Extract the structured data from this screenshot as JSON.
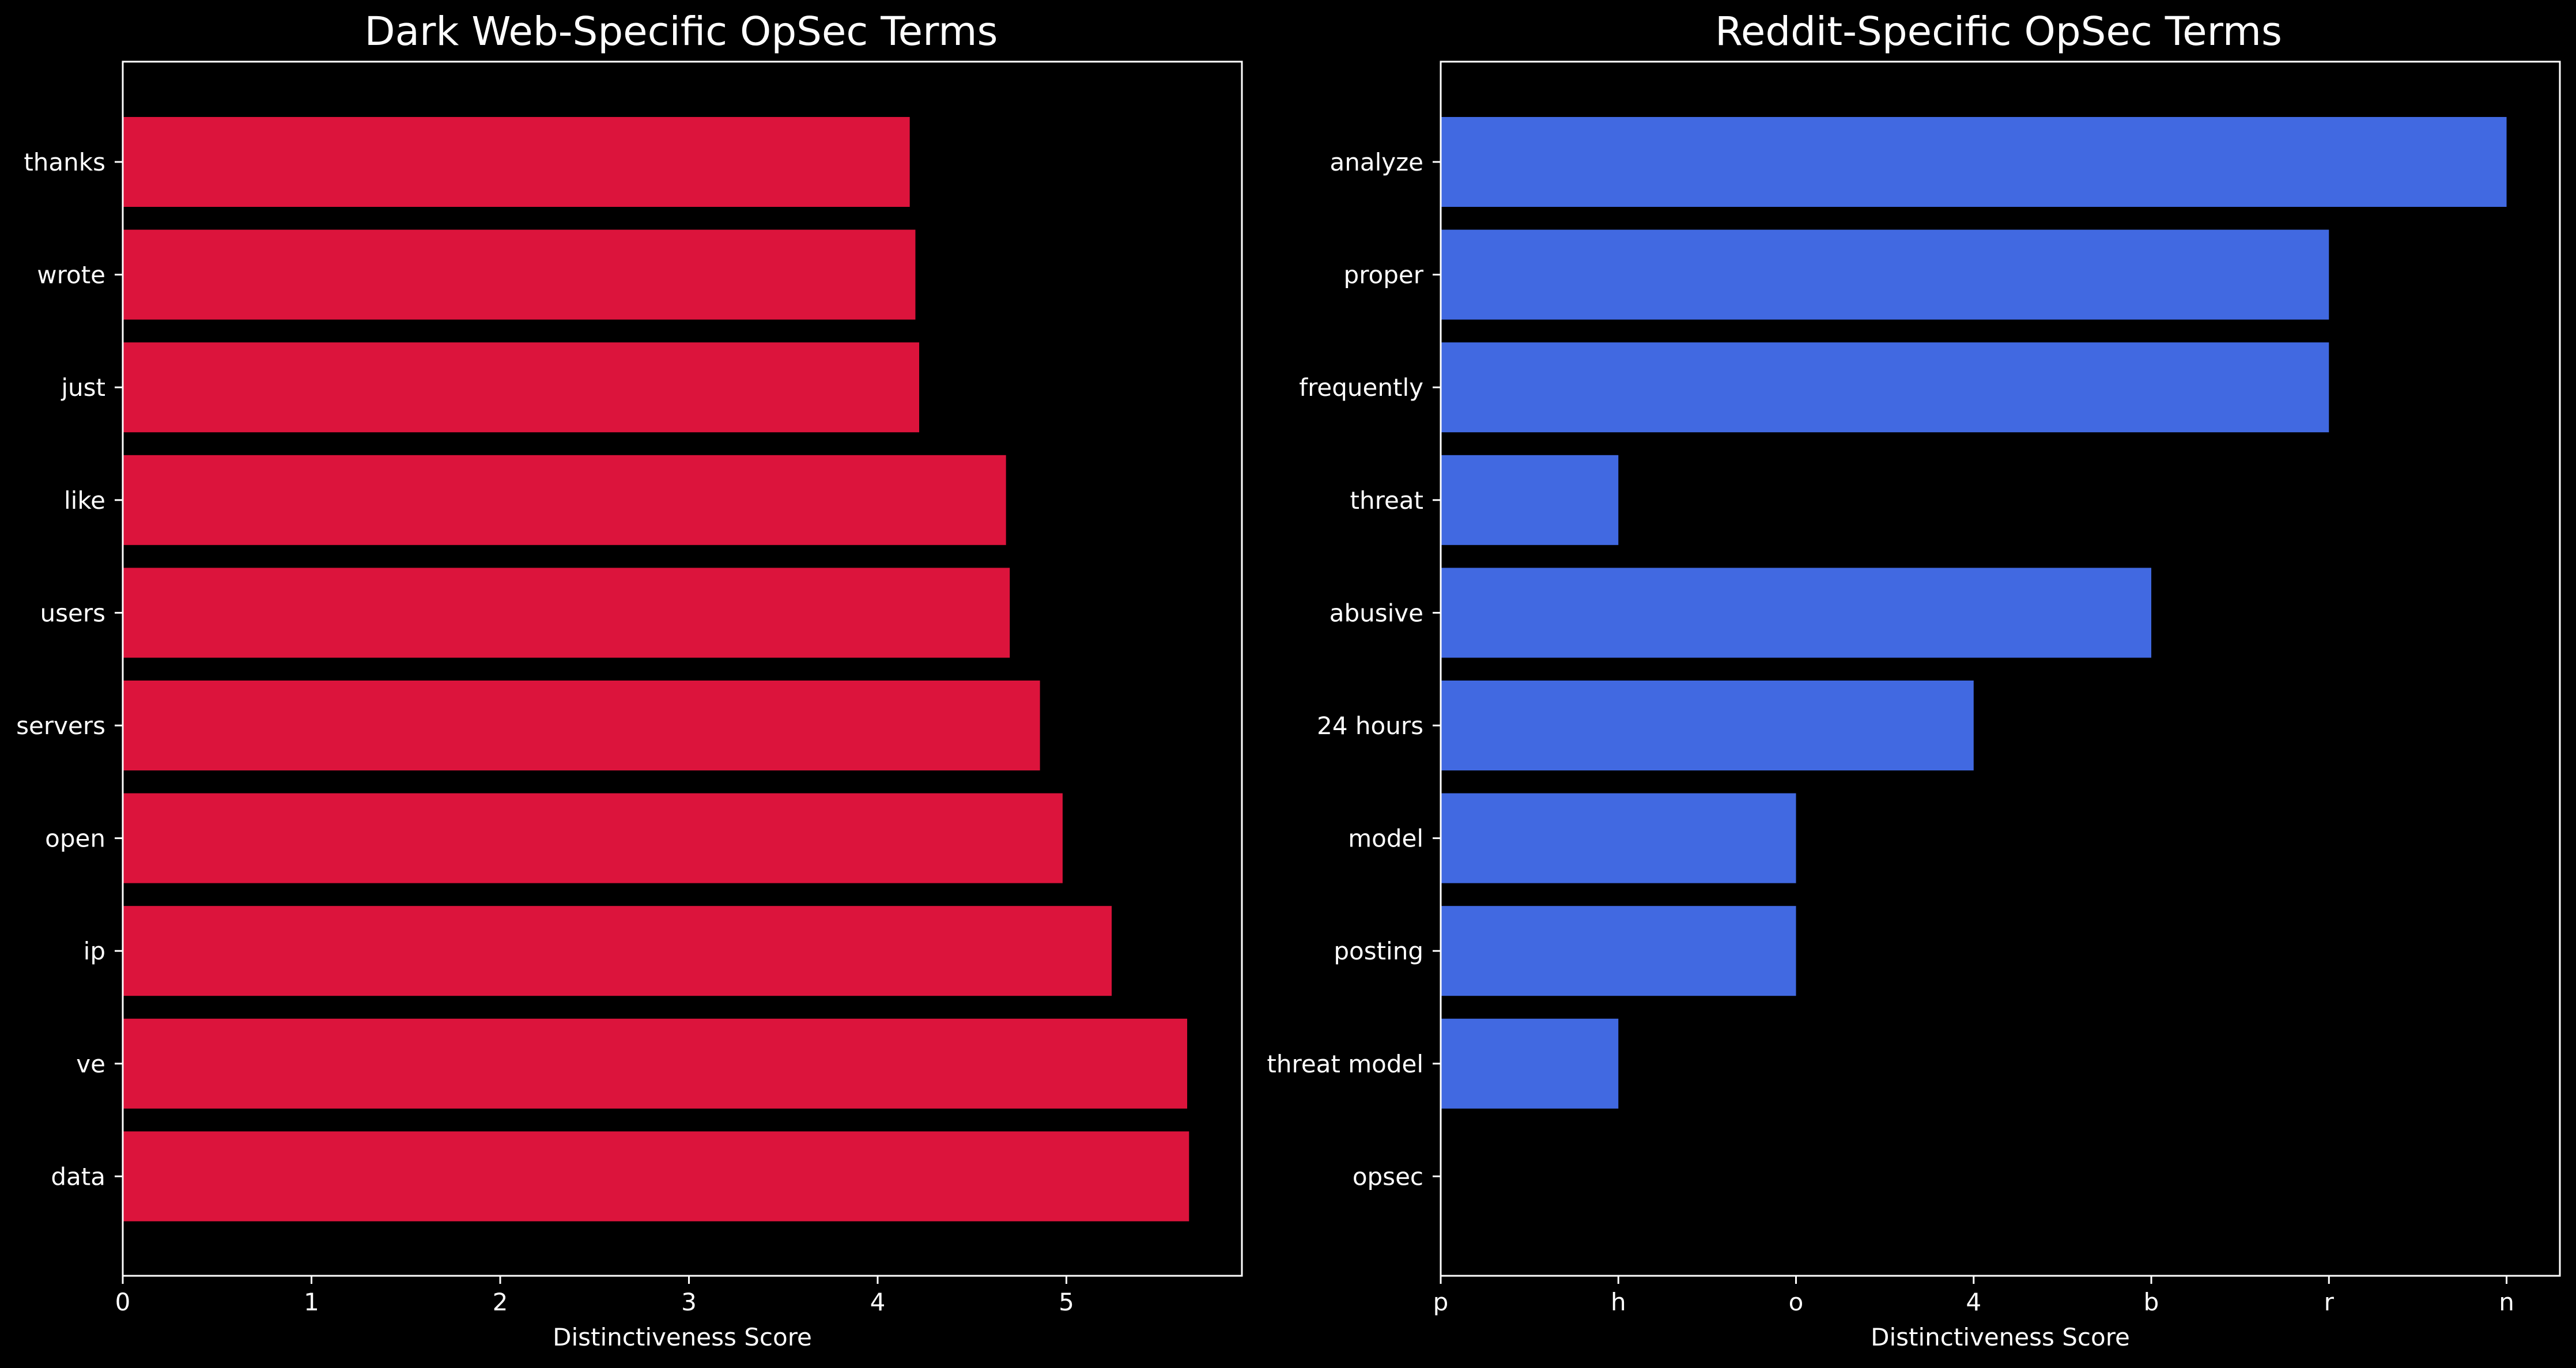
{
  "chart_data": [
    {
      "type": "bar",
      "orientation": "horizontal",
      "title": "Dark Web-Specific OpSec Terms",
      "xlabel": "Distinctiveness Score",
      "ylabel": "",
      "categories": [
        "thanks",
        "wrote",
        "just",
        "like",
        "users",
        "servers",
        "open",
        "ip",
        "ve",
        "data"
      ],
      "values": [
        4.17,
        4.2,
        4.22,
        4.68,
        4.7,
        4.86,
        4.98,
        5.24,
        5.64,
        5.65
      ],
      "x_ticks": [
        "0",
        "1",
        "2",
        "3",
        "4",
        "5"
      ],
      "x_tick_values": [
        0,
        1,
        2,
        3,
        4,
        5
      ],
      "xlim": [
        0,
        5.93
      ],
      "bar_color": "#dc143c",
      "grid": false,
      "legend": "none"
    },
    {
      "type": "bar",
      "orientation": "horizontal",
      "title": "Reddit-Specific OpSec Terms",
      "xlabel": "Distinctiveness Score",
      "ylabel": "",
      "categories": [
        "analyze",
        "proper",
        "frequently",
        "threat",
        "abusive",
        "24 hours",
        "model",
        "posting",
        "threat model",
        "opsec"
      ],
      "values": [
        6,
        5,
        5,
        1,
        4,
        3,
        2,
        2,
        1,
        0
      ],
      "x_ticks": [
        "p",
        "h",
        "o",
        "4",
        "b",
        "r",
        "n"
      ],
      "x_tick_values": [
        0,
        1,
        2,
        3,
        4,
        5,
        6
      ],
      "xlim": [
        0,
        6.3
      ],
      "bar_color": "#4169e1",
      "grid": false,
      "legend": "none"
    }
  ],
  "colors": {
    "background": "#000000",
    "foreground": "#ffffff"
  }
}
